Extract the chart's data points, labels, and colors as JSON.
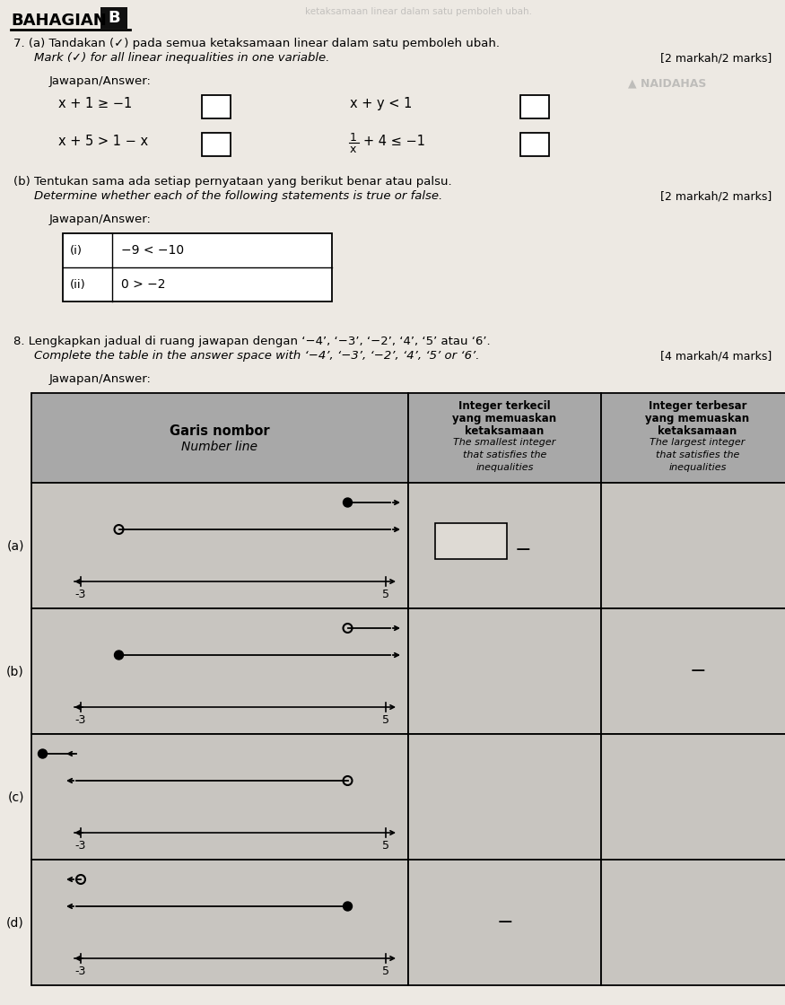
{
  "bg_color": "#ede9e3",
  "title_bahagian": "BAHAGIAN",
  "title_b": "B",
  "q7_text1_a": "7. (a) Tandakan (",
  "q7_checkmark": "✓",
  "q7_text1_b": ") pada semua ketaksamaan linear dalam satu pemboleh ubah.",
  "q7_text2": "Mark (✓) for all linear inequalities in one variable.",
  "marks7a": "[2 markah/2 marks]",
  "jawapan": "Jawapan/Answer:",
  "ineq1": "x + 1 ≥ −1",
  "ineq2": "x + y < 1",
  "ineq3": "x + 5 > 1 − x",
  "q7b_line1": "(b) Tentukan sama ada setiap pernyataan yang berikut benar atau palsu.",
  "q7b_line2": "Determine whether each of the following statements is true or false.",
  "marks7b": "[2 markah/2 marks]",
  "stmt_i_label": "(i)",
  "stmt_i": "−9 < −10",
  "stmt_ii_label": "(ii)",
  "stmt_ii": "0 > −2",
  "q8_line1": "8. Lengkapkan jadual di ruang jawapan dengan ‘−4’, ‘−3’, ‘−2’, ‘4’, ‘5’ atau ‘6’.",
  "q8_line2": "Complete the table in the answer space with ‘−4’, ‘−3’, ‘−2’, ‘4’, ‘5’ or ‘6’.",
  "marks8": "[4 markah/4 marks]",
  "col1_h1": "Garis nombor",
  "col1_h2": "Number line",
  "col2_h1": "Integer terkecil",
  "col2_h2": "yang memuaskan",
  "col2_h3": "ketaksamaan",
  "col2_h4": "The smallest integer",
  "col2_h5": "that satisfies the",
  "col2_h6": "inequalities",
  "col3_h1": "Integer terbesar",
  "col3_h2": "yang memuaskan",
  "col3_h3": "ketaksamaan",
  "col3_h4": "The largest integer",
  "col3_h5": "that satisfies the",
  "col3_h6": "inequalities",
  "header_bg": "#a8a8a8",
  "cell_bg": "#c8c5c0",
  "white": "#ffffff",
  "black": "#000000",
  "rows": [
    {
      "label": "(a)",
      "line1": {
        "closed": true,
        "point": 4,
        "dir": "right"
      },
      "line2": {
        "closed": false,
        "point": -2,
        "dir": "right"
      }
    },
    {
      "label": "(b)",
      "line1": {
        "closed": false,
        "point": 4,
        "dir": "right"
      },
      "line2": {
        "closed": true,
        "point": -2,
        "dir": "right"
      }
    },
    {
      "label": "(c)",
      "line1": {
        "closed": true,
        "point": -4,
        "dir": "left"
      },
      "line2": {
        "closed": false,
        "point": 4,
        "dir": "left"
      }
    },
    {
      "label": "(d)",
      "line1": {
        "closed": false,
        "point": -3,
        "dir": "left"
      },
      "line2": {
        "closed": true,
        "point": 4,
        "dir": "left"
      }
    }
  ],
  "tick_min": -3,
  "tick_max": 5
}
